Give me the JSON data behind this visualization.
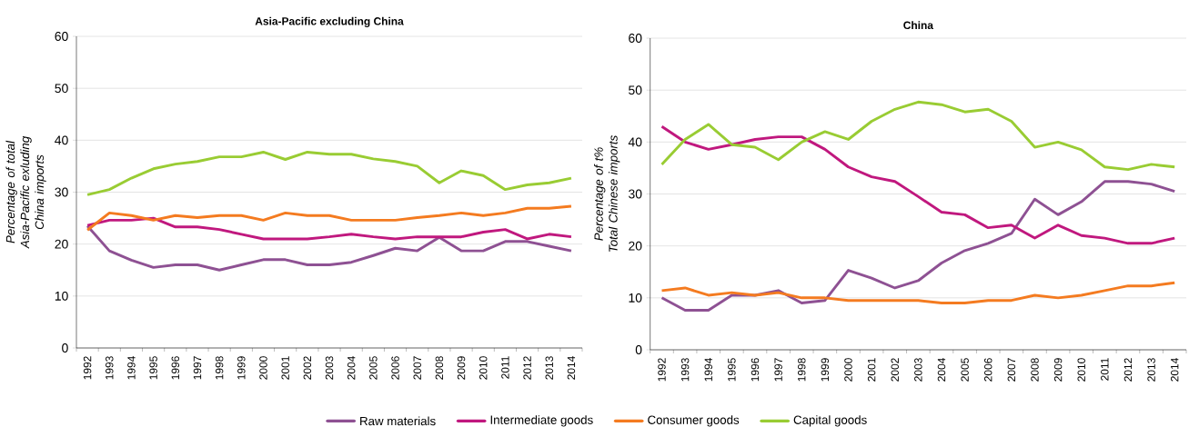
{
  "chart_data": [
    {
      "type": "line",
      "title": "Asia-Pacific excluding China",
      "ylabel": "Percentage of total Asia-Pacific exluding China imports",
      "categories": [
        "1992",
        "1993",
        "1994",
        "1995",
        "1996",
        "1997",
        "1998",
        "1999",
        "2000",
        "2001",
        "2002",
        "2003",
        "2004",
        "2005",
        "2006",
        "2007",
        "2008",
        "2009",
        "2010",
        "2011",
        "2012",
        "2013",
        "2014"
      ],
      "series": [
        {
          "name": "Raw materials",
          "color": "#8e5193",
          "values": [
            23.5,
            18.7,
            16.9,
            15.5,
            16,
            16,
            15,
            16,
            17,
            17,
            16,
            16,
            16.5,
            17.8,
            19.2,
            18.7,
            21.3,
            18.7,
            18.7,
            20.5,
            20.5,
            19.6,
            18.7
          ]
        },
        {
          "name": "Intermediate goods",
          "color": "#c0187e",
          "values": [
            23.6,
            24.6,
            24.6,
            25,
            23.3,
            23.3,
            22.8,
            21.9,
            21,
            21,
            21,
            21.4,
            21.9,
            21.4,
            21,
            21.4,
            21.4,
            21.4,
            22.3,
            22.8,
            21,
            21.9,
            21.4
          ]
        },
        {
          "name": "Consumer goods",
          "color": "#f47b20",
          "values": [
            22.7,
            26,
            25.5,
            24.6,
            25.5,
            25.1,
            25.5,
            25.5,
            24.6,
            26,
            25.5,
            25.5,
            24.6,
            24.6,
            24.6,
            25.1,
            25.5,
            26,
            25.5,
            26,
            26.9,
            26.9,
            27.3
          ]
        },
        {
          "name": "Capital goods",
          "color": "#99cc33",
          "values": [
            29.5,
            30.5,
            32.7,
            34.5,
            35.4,
            35.9,
            36.8,
            36.8,
            37.7,
            36.3,
            37.7,
            37.3,
            37.3,
            36.4,
            35.9,
            35,
            31.8,
            34.1,
            33.2,
            30.5,
            31.4,
            31.8,
            32.7
          ]
        }
      ],
      "ylim": [
        0,
        60
      ],
      "yticks": [
        0,
        10,
        20,
        30,
        40,
        50,
        60
      ],
      "grid": "y",
      "legend": "bottom",
      "marker": "none"
    },
    {
      "type": "line",
      "title": "China",
      "ylabel": "Percentage of t% Total Chinese imports",
      "categories": [
        "1992",
        "1993",
        "1994",
        "1995",
        "1996",
        "1997",
        "1998",
        "1999",
        "2000",
        "2001",
        "2002",
        "2003",
        "2004",
        "2005",
        "2006",
        "2007",
        "2008",
        "2009",
        "2010",
        "2011",
        "2012",
        "2013",
        "2014"
      ],
      "series": [
        {
          "color": "#8e5193",
          "values": [
            10,
            7.6,
            7.6,
            10.5,
            10.5,
            11.4,
            9,
            9.5,
            15.3,
            13.8,
            11.9,
            13.3,
            16.7,
            19.1,
            20.5,
            22.4,
            29,
            26,
            28.5,
            32.4,
            32.4,
            31.9,
            30.5
          ]
        },
        {
          "color": "#c0187e",
          "values": [
            43,
            40,
            38.6,
            39.5,
            40.5,
            41,
            41,
            38.6,
            35.2,
            33.3,
            32.4,
            29.5,
            26.5,
            26,
            23.5,
            24,
            21.5,
            24,
            22,
            21.5,
            20.5,
            20.5,
            21.5
          ]
        },
        {
          "color": "#f47b20",
          "values": [
            11.4,
            11.9,
            10.5,
            11,
            10.5,
            11,
            10,
            10,
            9.5,
            9.5,
            9.5,
            9.5,
            9,
            9,
            9.5,
            9.5,
            10.5,
            10,
            10.5,
            11.4,
            12.3,
            12.3,
            12.9
          ]
        },
        {
          "color": "#99cc33",
          "values": [
            35.7,
            40.5,
            43.4,
            39.5,
            39,
            36.6,
            40,
            42,
            40.5,
            44,
            46.3,
            47.7,
            47.2,
            45.8,
            46.3,
            44,
            39,
            40,
            38.5,
            35.2,
            34.7,
            35.7,
            35.2
          ]
        }
      ],
      "ylim": [
        0,
        60
      ],
      "yticks": [
        0,
        10,
        20,
        30,
        40,
        50,
        60
      ],
      "grid": "y",
      "marker": "none"
    }
  ]
}
